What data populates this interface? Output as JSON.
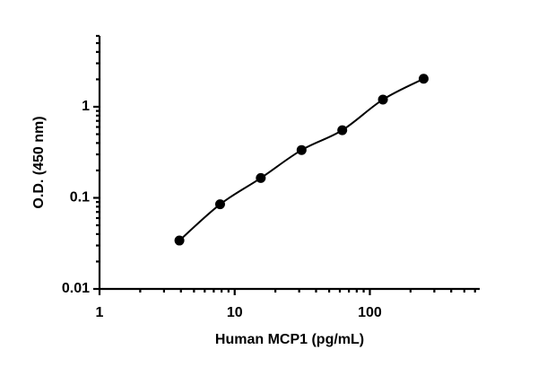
{
  "chart_data": {
    "type": "scatter",
    "xlabel": "Human MCP1 (pg/mL)",
    "ylabel": "O.D. (450 nm)",
    "xscale": "log",
    "yscale": "log",
    "xlim": [
      1,
      650
    ],
    "ylim": [
      0.01,
      6
    ],
    "xticks": [
      1,
      10,
      100
    ],
    "yticks": [
      0.01,
      0.1,
      1
    ],
    "xminorticks": [
      2,
      3,
      4,
      5,
      6,
      7,
      8,
      9,
      20,
      30,
      40,
      50,
      60,
      70,
      80,
      90,
      200,
      300,
      400,
      500,
      600
    ],
    "yminorticks": [
      0.02,
      0.03,
      0.04,
      0.05,
      0.06,
      0.07,
      0.08,
      0.09,
      0.2,
      0.3,
      0.4,
      0.5,
      0.6,
      0.7,
      0.8,
      0.9,
      2,
      3,
      4,
      5,
      6
    ],
    "fit_line": true,
    "series": [
      {
        "color": "#000000",
        "x": [
          3.9,
          7.8,
          15.6,
          31.25,
          62.5,
          125,
          250
        ],
        "values": [
          0.034,
          0.085,
          0.165,
          0.335,
          0.553,
          1.2,
          2.03
        ]
      }
    ]
  }
}
